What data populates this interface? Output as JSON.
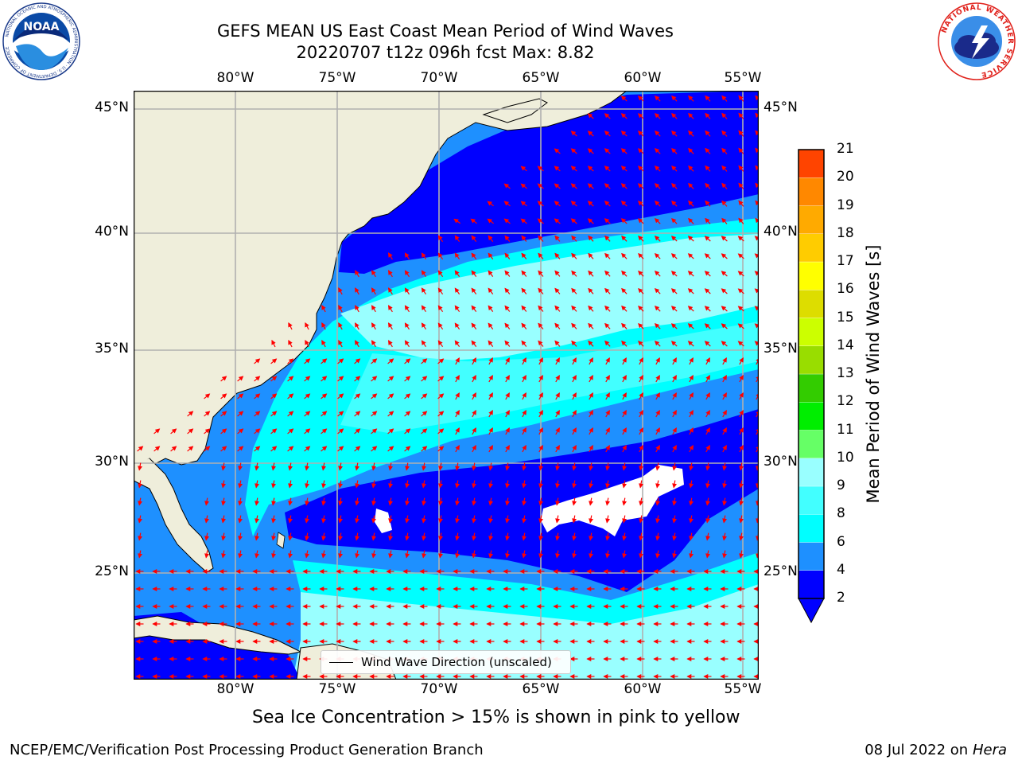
{
  "header": {
    "title": "GEFS MEAN US East Coast Mean Period of Wind Waves",
    "subtitle": "20220707 t12z 096h fcst   Max: 8.82"
  },
  "logos": {
    "noaa": {
      "text": "NOAA",
      "ring_text": "NATIONAL OCEANIC AND ATMOSPHERIC ADMINISTRATION · U.S. DEPARTMENT OF COMMERCE"
    },
    "nws": {
      "ring_text": "NATIONAL WEATHER SERVICE"
    }
  },
  "map": {
    "longitudes": [
      "80°W",
      "75°W",
      "70°W",
      "65°W",
      "60°W",
      "55°W"
    ],
    "latitudes": [
      "45°N",
      "40°N",
      "35°N",
      "30°N",
      "25°N"
    ],
    "colors": {
      "land": "#efeedb",
      "ocean_dark": "#0000ff",
      "ocean_mid": "#1e90ff",
      "ocean_light": "#00ffff",
      "ocean_pale": "#99ffff",
      "arrow": "#ff0000",
      "grid": "#b0b0b0"
    }
  },
  "legend": {
    "label": "Wind Wave Direction (unscaled)"
  },
  "colorbar": {
    "label": "Mean Period of Wind Waves [s]",
    "ticks": [
      "2",
      "4",
      "6",
      "8",
      "9",
      "10",
      "11",
      "12",
      "13",
      "14",
      "15",
      "16",
      "17",
      "18",
      "19",
      "20",
      "21"
    ],
    "colors": [
      "#0000ff",
      "#1e90ff",
      "#00ffff",
      "#42ffff",
      "#99ffff",
      "#66ff66",
      "#00ee00",
      "#33cc00",
      "#99dd00",
      "#ccff00",
      "#dddd00",
      "#ffff00",
      "#ffcc00",
      "#ffaa00",
      "#ff8800",
      "#ff4400",
      "#ff0000"
    ]
  },
  "notes": {
    "sea_ice": "Sea Ice Concentration > 15% is shown in pink to yellow",
    "footer_left": "NCEP/EMC/Verification Post Processing Product Generation Branch",
    "footer_date": "08 Jul 2022 on",
    "footer_host": "Hera"
  }
}
